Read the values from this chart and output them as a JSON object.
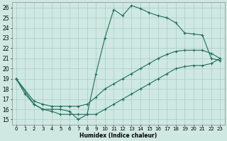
{
  "xlabel": "Humidex (Indice chaleur)",
  "xlim": [
    -0.5,
    23.5
  ],
  "ylim": [
    14.5,
    26.5
  ],
  "xticks": [
    0,
    1,
    2,
    3,
    4,
    5,
    6,
    7,
    8,
    9,
    10,
    11,
    12,
    13,
    14,
    15,
    16,
    17,
    18,
    19,
    20,
    21,
    22,
    23
  ],
  "yticks": [
    15,
    16,
    17,
    18,
    19,
    20,
    21,
    22,
    23,
    24,
    25,
    26
  ],
  "bg_color": "#cfe8e2",
  "grid_color": "#a8ccc4",
  "line_color": "#1e6e5e",
  "line1_x": [
    0,
    1,
    2,
    3,
    4,
    5,
    6,
    7,
    8,
    9,
    10,
    11,
    12,
    13,
    14,
    15,
    16,
    17,
    18,
    19,
    20,
    21,
    22,
    23
  ],
  "line1_y": [
    19.0,
    17.5,
    16.5,
    16.0,
    16.0,
    16.0,
    15.8,
    15.0,
    15.5,
    19.5,
    23.0,
    25.8,
    25.2,
    26.2,
    25.9,
    25.5,
    25.2,
    25.0,
    24.5,
    23.5,
    23.4,
    23.3,
    21.0,
    20.8
  ],
  "line2_x": [
    0,
    2,
    3,
    4,
    5,
    6,
    7,
    8,
    9,
    10,
    11,
    12,
    13,
    14,
    15,
    16,
    17,
    18,
    19,
    20,
    21,
    22,
    23
  ],
  "line2_y": [
    19.0,
    16.8,
    16.5,
    16.3,
    16.3,
    16.3,
    16.3,
    16.5,
    17.2,
    18.0,
    18.5,
    19.0,
    19.5,
    20.0,
    20.5,
    21.0,
    21.4,
    21.7,
    21.8,
    21.8,
    21.8,
    21.5,
    21.0
  ],
  "line3_x": [
    0,
    2,
    3,
    4,
    5,
    6,
    7,
    8,
    9,
    10,
    11,
    12,
    13,
    14,
    15,
    16,
    17,
    18,
    19,
    20,
    21,
    22,
    23
  ],
  "line3_y": [
    19.0,
    16.5,
    16.0,
    15.8,
    15.5,
    15.5,
    15.5,
    15.5,
    15.5,
    16.0,
    16.5,
    17.0,
    17.5,
    18.0,
    18.5,
    19.0,
    19.5,
    20.0,
    20.2,
    20.3,
    20.3,
    20.5,
    21.0
  ]
}
